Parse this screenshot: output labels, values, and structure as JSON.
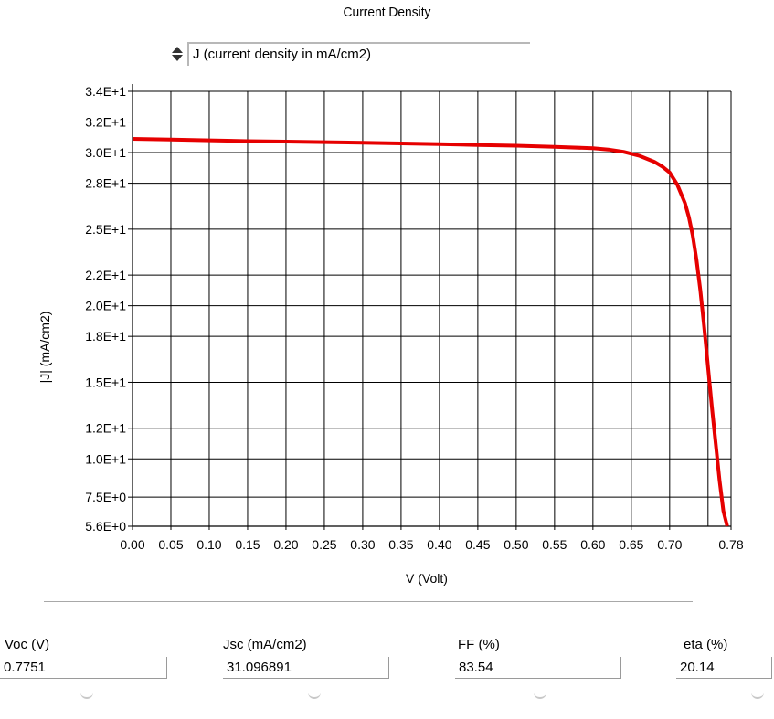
{
  "header": {
    "title": "Current Density"
  },
  "selector": {
    "value": "J (current density in mA/cm2)"
  },
  "chart_data": {
    "type": "line",
    "title": "Current Density",
    "xlabel": "V (Volt)",
    "ylabel": "|J| (mA/cm2)",
    "xlim": [
      0.0,
      0.78
    ],
    "ylim": [
      5.6,
      34
    ],
    "x_ticks": [
      0.0,
      0.05,
      0.1,
      0.15,
      0.2,
      0.25,
      0.3,
      0.35,
      0.4,
      0.45,
      0.5,
      0.55,
      0.6,
      0.65,
      0.7,
      0.78
    ],
    "x_tick_labels": [
      "0.00",
      "0.05",
      "0.10",
      "0.15",
      "0.20",
      "0.25",
      "0.30",
      "0.35",
      "0.40",
      "0.45",
      "0.50",
      "0.55",
      "0.60",
      "0.65",
      "0.70",
      "0.78"
    ],
    "y_ticks": [
      5.6,
      7.5,
      10,
      12,
      15,
      18,
      20,
      22,
      25,
      28,
      30,
      32,
      34
    ],
    "y_tick_labels": [
      "5.6E+0",
      "7.5E+0",
      "1.0E+1",
      "1.2E+1",
      "1.5E+1",
      "1.8E+1",
      "2.0E+1",
      "2.2E+1",
      "2.5E+1",
      "2.8E+1",
      "3.0E+1",
      "3.2E+1",
      "3.4E+1"
    ],
    "grid": true,
    "series": [
      {
        "color": "#e60000",
        "x": [
          0.0,
          0.05,
          0.1,
          0.15,
          0.2,
          0.25,
          0.3,
          0.35,
          0.4,
          0.45,
          0.5,
          0.55,
          0.6,
          0.62,
          0.64,
          0.66,
          0.68,
          0.69,
          0.7,
          0.71,
          0.72,
          0.725,
          0.73,
          0.735,
          0.74,
          0.745,
          0.75,
          0.755,
          0.76,
          0.765,
          0.77,
          0.775
        ],
        "y": [
          30.9,
          30.85,
          30.8,
          30.75,
          30.72,
          30.68,
          30.64,
          30.6,
          30.55,
          30.5,
          30.45,
          30.38,
          30.28,
          30.2,
          30.05,
          29.8,
          29.4,
          29.1,
          28.7,
          27.9,
          26.7,
          25.8,
          24.6,
          23.0,
          21.0,
          18.6,
          16.0,
          13.4,
          11.0,
          8.6,
          6.6,
          5.6
        ]
      }
    ]
  },
  "stats": [
    {
      "label": "Voc (V)",
      "value": "0.7751"
    },
    {
      "label": "Jsc (mA/cm2)",
      "value": "31.096891"
    },
    {
      "label": "FF  (%)",
      "value": "83.54"
    },
    {
      "label": "eta (%)",
      "value": "20.14"
    }
  ]
}
